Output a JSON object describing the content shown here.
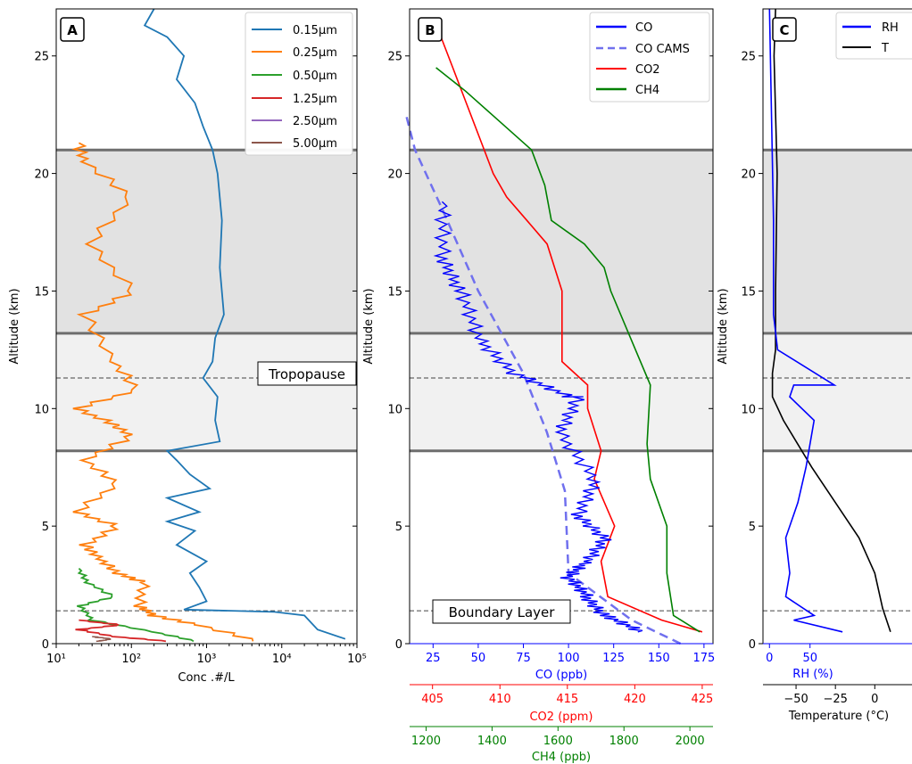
{
  "shared": {
    "ylabel": "Altitude (km)",
    "y_ticks": [
      0,
      5,
      10,
      15,
      20,
      25
    ],
    "ylim": [
      0,
      27
    ],
    "bands": [
      {
        "from": 13.2,
        "to": 21.0,
        "color": "#e2e2e2"
      },
      {
        "from": 8.2,
        "to": 13.2,
        "color": "#f1f1f1"
      }
    ],
    "thick_lines": [
      8.2,
      13.2,
      21.0
    ],
    "tropopause_alt": 11.3,
    "boundary_layer_alt": 1.4,
    "tropopause_label": "Tropopause",
    "boundary_layer_label": "Boundary Layer"
  },
  "panels": {
    "a": {
      "label": "A",
      "xlabel": "Conc .#/L",
      "x_ticks": [
        "10¹",
        "10²",
        "10³",
        "10⁴",
        "10⁵"
      ],
      "legend": [
        "0.15μm",
        "0.25μm",
        "0.50μm",
        "1.25μm",
        "2.50μm",
        "5.00μm"
      ]
    },
    "b": {
      "label": "B",
      "legend": [
        "CO",
        "CO CAMS",
        "CO2",
        "CH4"
      ],
      "axis1": {
        "label": "CO (ppb)",
        "ticks": [
          "25",
          "50",
          "75",
          "100",
          "125",
          "150",
          "175"
        ]
      },
      "axis2": {
        "label": "CO2 (ppm)",
        "ticks": [
          "405",
          "410",
          "415",
          "420",
          "425"
        ]
      },
      "axis3": {
        "label": "CH4 (ppb)",
        "ticks": [
          "1200",
          "1400",
          "1600",
          "1800",
          "2000"
        ]
      }
    },
    "c": {
      "label": "C",
      "legend": [
        "RH",
        "T"
      ],
      "axis1": {
        "label": "RH (%)",
        "ticks": [
          "0",
          "50"
        ]
      },
      "axis2": {
        "label": "Temperature (°C)",
        "ticks": [
          "−50",
          "−25",
          "0"
        ]
      }
    }
  },
  "chart_data": [
    {
      "type": "line",
      "panel": "A",
      "xscale": "log",
      "xlim": [
        10,
        100000
      ],
      "xlabel": "Conc .#/L",
      "ylabel": "Altitude (km)",
      "series": [
        {
          "name": "0.15μm",
          "color": "#1f77b4",
          "x": [
            70000,
            30000,
            20000,
            8000,
            500,
            1000,
            800,
            600,
            1000,
            400,
            700,
            300,
            800,
            300,
            1100,
            600,
            400,
            300,
            1500,
            1300,
            1400,
            900,
            1200,
            1300,
            1700,
            1500,
            1600,
            1400,
            1200,
            900,
            700,
            400,
            500,
            300,
            150,
            200
          ],
          "y": [
            0.2,
            0.6,
            1.2,
            1.35,
            1.45,
            1.8,
            2.4,
            3.0,
            3.5,
            4.2,
            4.8,
            5.2,
            5.6,
            6.2,
            6.6,
            7.2,
            7.8,
            8.2,
            8.6,
            9.5,
            10.5,
            11.3,
            12.0,
            13.0,
            14.0,
            16.0,
            18.0,
            20.0,
            21.0,
            22.0,
            23.0,
            24.0,
            25.0,
            25.8,
            26.3,
            27.0
          ]
        }
      ]
    },
    {
      "type": "line",
      "panel": "B",
      "xlabel": "CO (ppb)",
      "secondary_axes": [
        "CO2 (ppm)",
        "CH4 (ppb)"
      ],
      "series": [
        {
          "name": "CO",
          "color": "#0000ff",
          "axis": "CO (ppb)",
          "xlim": [
            12,
            180
          ],
          "x": [
            140,
            120,
            110,
            100,
            110,
            120,
            105,
            115,
            95,
            105,
            100,
            70,
            50,
            40,
            30,
            30
          ],
          "y": [
            0.5,
            1.2,
            2.0,
            2.8,
            3.5,
            4.5,
            5.5,
            7.0,
            9.0,
            10.5,
            10.5,
            11.5,
            13.0,
            15.0,
            16.5,
            18.8
          ]
        },
        {
          "name": "CO CAMS",
          "color": "#6f6fee",
          "axis": "CO (ppb)",
          "xlim": [
            12,
            180
          ],
          "x": [
            162,
            135,
            100,
            98,
            88,
            75,
            50,
            30,
            15,
            10
          ],
          "y": [
            0,
            1.0,
            3.0,
            6.5,
            9.0,
            11.5,
            15.0,
            18.5,
            21.0,
            22.5
          ]
        },
        {
          "name": "CO2",
          "color": "#ff0000",
          "axis": "CO2 (ppm)",
          "xlim": [
            403.3,
            425.8
          ],
          "x": [
            425,
            422,
            418,
            417.5,
            418.5,
            417,
            417.5,
            416.5,
            416.5,
            414.6,
            414.6,
            413.5,
            412,
            410.5,
            409.5,
            408.5,
            407.5,
            406.5,
            405.5
          ],
          "y": [
            0.5,
            1.0,
            2.0,
            3.5,
            5.0,
            7.0,
            8.2,
            10.0,
            11.0,
            12.0,
            15.0,
            17.0,
            18.0,
            19.0,
            20.0,
            21.5,
            23.0,
            24.5,
            26.0
          ],
          "note": "y values in km"
        },
        {
          "name": "CH4",
          "color": "#008000",
          "axis": "CH4 (ppb)",
          "xlim": [
            1150,
            2070
          ],
          "x": [
            2030,
            1950,
            1930,
            1930,
            1880,
            1870,
            1880,
            1820,
            1760,
            1740,
            1680,
            1580,
            1560,
            1520,
            1400,
            1320,
            1230
          ],
          "y": [
            0.5,
            1.2,
            3.0,
            5.0,
            7.0,
            8.5,
            11.0,
            13.0,
            15.0,
            16.0,
            17.0,
            18.0,
            19.5,
            21.0,
            22.5,
            23.5,
            24.5
          ]
        }
      ]
    },
    {
      "type": "line",
      "panel": "C",
      "series": [
        {
          "name": "RH",
          "color": "#0000ff",
          "axis": "RH (%)",
          "xlim": [
            -8,
            190
          ],
          "x": [
            90,
            30,
            55,
            20,
            25,
            20,
            35,
            45,
            55,
            25,
            30,
            80,
            10,
            5,
            5,
            0
          ],
          "y": [
            0.5,
            1.0,
            1.2,
            2.0,
            3.0,
            4.5,
            6.0,
            7.5,
            9.5,
            10.5,
            11.0,
            11.0,
            12.5,
            14.0,
            18.0,
            27.0
          ]
        },
        {
          "name": "T",
          "color": "#000000",
          "axis": "Temperature (°C)",
          "xlim": [
            -71,
            31
          ],
          "x": [
            10,
            5,
            0,
            -10,
            -25,
            -40,
            -58,
            -65,
            -65,
            -63,
            -63,
            -62,
            -64,
            -63
          ],
          "y": [
            0.5,
            1.5,
            3.0,
            4.5,
            6.0,
            7.5,
            9.5,
            10.5,
            11.5,
            12.5,
            15.0,
            20.0,
            25.0,
            27.0
          ]
        }
      ]
    }
  ]
}
